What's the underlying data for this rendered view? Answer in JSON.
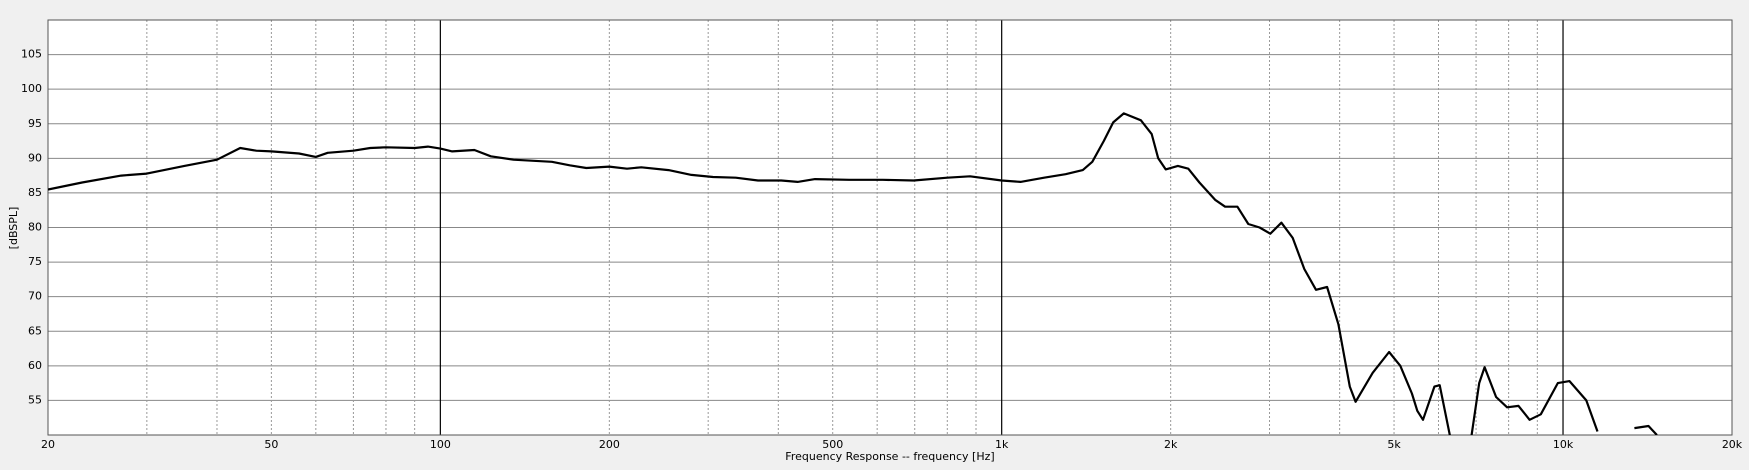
{
  "chart_data": {
    "type": "line",
    "xlabel": "Frequency Response -- frequency [Hz]",
    "ylabel": "[dBSPL]",
    "xscale": "log",
    "xlim": [
      20,
      20000
    ],
    "ylim": [
      50,
      110
    ],
    "xticks": [
      20,
      50,
      100,
      200,
      500,
      {
        "value": 1000,
        "label": "1k"
      },
      {
        "value": 2000,
        "label": "2k"
      },
      {
        "value": 5000,
        "label": "5k"
      },
      {
        "value": 10000,
        "label": "10k"
      },
      {
        "value": 20000,
        "label": "20k"
      }
    ],
    "xminor": [
      30,
      40,
      60,
      70,
      80,
      90,
      300,
      400,
      600,
      700,
      800,
      900,
      3000,
      4000,
      6000,
      7000,
      8000,
      9000
    ],
    "yticks": [
      55,
      60,
      65,
      70,
      75,
      80,
      85,
      90,
      95,
      100,
      105
    ],
    "grid": true,
    "series": [
      {
        "color": "#000000",
        "x": [
          20,
          23,
          27,
          30,
          35,
          40,
          44,
          47,
          50,
          56,
          60,
          63,
          70,
          75,
          80,
          90,
          95,
          100,
          105,
          115,
          123,
          135,
          158,
          170,
          182,
          200,
          215,
          228,
          255,
          280,
          306,
          336,
          368,
          405,
          433,
          465,
          535,
          614,
          697,
          800,
          878,
          1000,
          1080,
          1190,
          1300,
          1395,
          1450,
          1520,
          1580,
          1650,
          1770,
          1850,
          1900,
          1960,
          2060,
          2150,
          2250,
          2400,
          2500,
          2630,
          2750,
          2880,
          3010,
          3150,
          3300,
          3460,
          3630,
          3800,
          3980,
          4170,
          4270,
          4580,
          4900,
          5130,
          5380,
          5500,
          5630,
          5900,
          6030,
          6320,
          6500,
          6860,
          7090,
          7250,
          7600,
          7950,
          8330,
          8720,
          9130,
          9790,
          10270,
          11000,
          11520,
          12000,
          13400,
          14200,
          14700
        ],
        "values": [
          85.5,
          86.5,
          87.5,
          87.8,
          88.9,
          89.8,
          91.5,
          91.1,
          91,
          90.7,
          90.2,
          90.8,
          91.1,
          91.5,
          91.6,
          91.5,
          91.7,
          91.4,
          91,
          91.2,
          90.3,
          89.8,
          89.5,
          89,
          88.6,
          88.8,
          88.5,
          88.7,
          88.3,
          87.6,
          87.3,
          87.2,
          86.8,
          86.8,
          86.6,
          87,
          86.9,
          86.9,
          86.8,
          87.2,
          87.4,
          86.8,
          86.6,
          87.2,
          87.7,
          88.3,
          89.5,
          92.5,
          95.2,
          96.5,
          95.5,
          93.5,
          90,
          88.4,
          88.9,
          88.5,
          86.5,
          84,
          83,
          83,
          80.5,
          80,
          79.1,
          80.7,
          78.5,
          74,
          71,
          71.4,
          66,
          57,
          54.8,
          59,
          62,
          60,
          56,
          53.5,
          52.2,
          57,
          57.2,
          49,
          null,
          49.5,
          57.5,
          59.8,
          55.5,
          54,
          54.2,
          52.2,
          53,
          57.5,
          57.8,
          55,
          50.5,
          null,
          51,
          51.3,
          50
        ]
      }
    ]
  }
}
